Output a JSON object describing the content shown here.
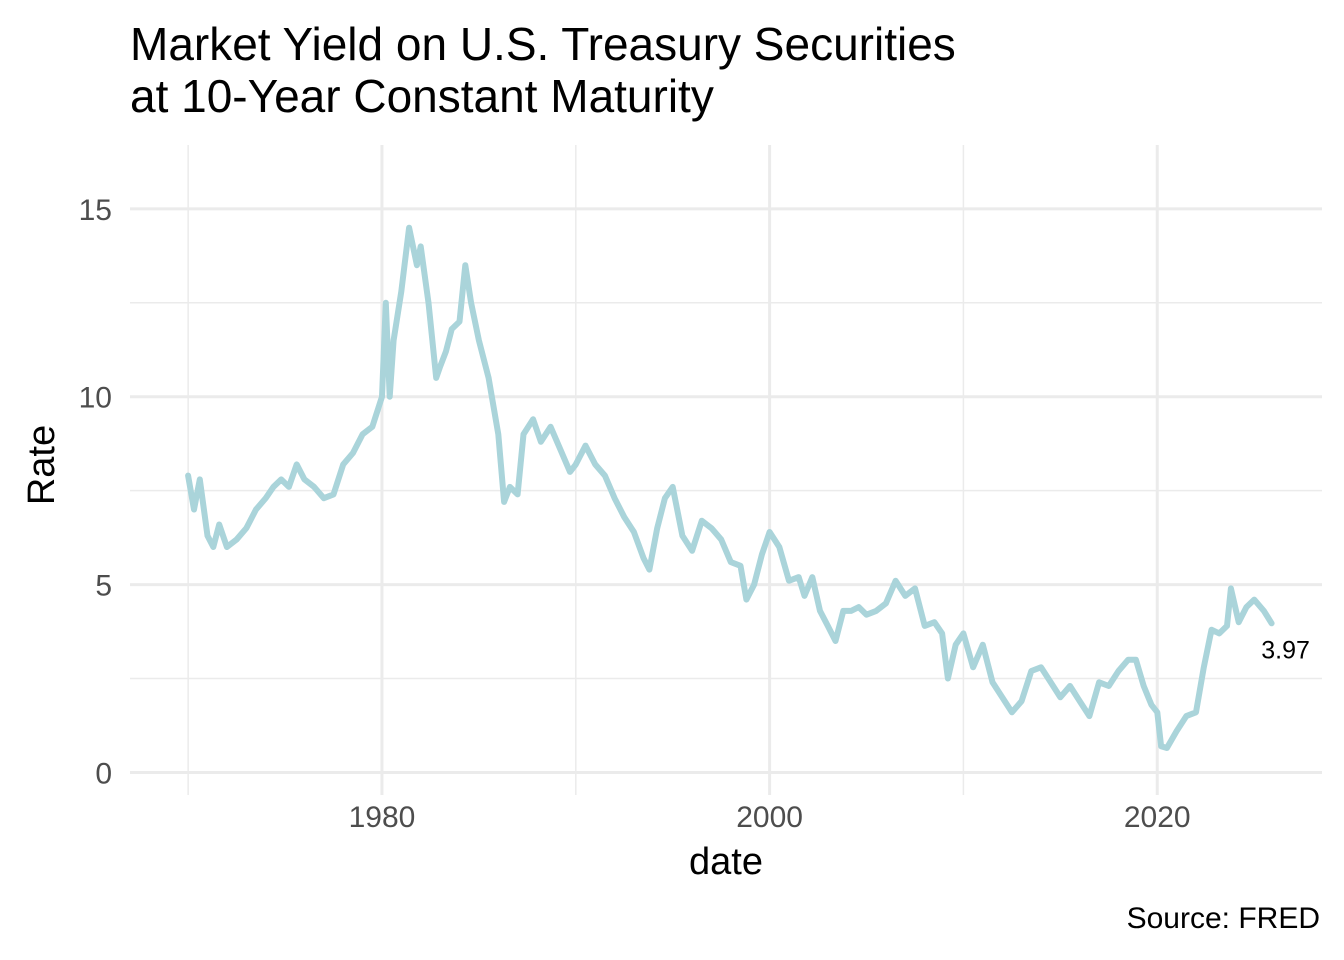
{
  "chart_data": {
    "type": "line",
    "title_lines": [
      "Market Yield on U.S. Treasury Securities",
      "at 10-Year Constant Maturity"
    ],
    "xlabel": "date",
    "ylabel": "Rate",
    "caption": "Source: FRED",
    "end_label": "3.97",
    "xlim": [
      1967.0,
      2028.5
    ],
    "ylim": [
      -0.6,
      16.7
    ],
    "x_major_ticks": [
      1980,
      2000,
      2020
    ],
    "x_minor_ticks": [
      1970,
      1990,
      2010
    ],
    "y_major_ticks": [
      0,
      5,
      10,
      15
    ],
    "y_minor_ticks": [
      2.5,
      7.5,
      12.5
    ],
    "grid": true,
    "line_color": "#aad4da",
    "grid_color": "#ebebeb",
    "series": [
      {
        "x": [
          1970.0,
          1970.3,
          1970.6,
          1971.0,
          1971.3,
          1971.6,
          1972.0,
          1972.5,
          1973.0,
          1973.5,
          1974.0,
          1974.4,
          1974.8,
          1975.2,
          1975.6,
          1976.0,
          1976.5,
          1977.0,
          1977.5,
          1978.0,
          1978.5,
          1979.0,
          1979.5,
          1980.0,
          1980.2,
          1980.4,
          1980.6,
          1981.0,
          1981.4,
          1981.8,
          1982.0,
          1982.4,
          1982.8,
          1983.0,
          1983.3,
          1983.6,
          1984.0,
          1984.3,
          1984.6,
          1985.0,
          1985.5,
          1986.0,
          1986.3,
          1986.6,
          1987.0,
          1987.3,
          1987.8,
          1988.2,
          1988.7,
          1989.2,
          1989.7,
          1990.0,
          1990.5,
          1991.0,
          1991.5,
          1992.0,
          1992.5,
          1993.0,
          1993.5,
          1993.8,
          1994.2,
          1994.6,
          1995.0,
          1995.5,
          1996.0,
          1996.5,
          1997.0,
          1997.5,
          1998.0,
          1998.5,
          1998.8,
          1999.2,
          1999.6,
          2000.0,
          2000.5,
          2001.0,
          2001.5,
          2001.8,
          2002.2,
          2002.6,
          2003.0,
          2003.4,
          2003.8,
          2004.2,
          2004.6,
          2005.0,
          2005.5,
          2006.0,
          2006.5,
          2007.0,
          2007.5,
          2008.0,
          2008.5,
          2008.9,
          2009.2,
          2009.6,
          2010.0,
          2010.5,
          2011.0,
          2011.5,
          2012.0,
          2012.5,
          2013.0,
          2013.5,
          2014.0,
          2014.5,
          2015.0,
          2015.5,
          2016.0,
          2016.5,
          2017.0,
          2017.5,
          2018.0,
          2018.5,
          2018.9,
          2019.3,
          2019.7,
          2020.0,
          2020.2,
          2020.5,
          2021.0,
          2021.5,
          2022.0,
          2022.4,
          2022.8,
          2023.2,
          2023.6,
          2023.8,
          2024.2,
          2024.6,
          2025.0,
          2025.5,
          2025.9
        ],
        "y": [
          7.9,
          7.0,
          7.8,
          6.3,
          6.0,
          6.6,
          6.0,
          6.2,
          6.5,
          7.0,
          7.3,
          7.6,
          7.8,
          7.6,
          8.2,
          7.8,
          7.6,
          7.3,
          7.4,
          8.2,
          8.5,
          9.0,
          9.2,
          10.0,
          12.5,
          10.0,
          11.5,
          12.8,
          14.5,
          13.5,
          14.0,
          12.5,
          10.5,
          10.8,
          11.2,
          11.8,
          12.0,
          13.5,
          12.5,
          11.5,
          10.5,
          9.0,
          7.2,
          7.6,
          7.4,
          9.0,
          9.4,
          8.8,
          9.2,
          8.6,
          8.0,
          8.2,
          8.7,
          8.2,
          7.9,
          7.3,
          6.8,
          6.4,
          5.7,
          5.4,
          6.5,
          7.3,
          7.6,
          6.3,
          5.9,
          6.7,
          6.5,
          6.2,
          5.6,
          5.5,
          4.6,
          5.0,
          5.8,
          6.4,
          6.0,
          5.1,
          5.2,
          4.7,
          5.2,
          4.3,
          3.9,
          3.5,
          4.3,
          4.3,
          4.4,
          4.2,
          4.3,
          4.5,
          5.1,
          4.7,
          4.9,
          3.9,
          4.0,
          3.7,
          2.5,
          3.4,
          3.7,
          2.8,
          3.4,
          2.4,
          2.0,
          1.6,
          1.9,
          2.7,
          2.8,
          2.4,
          2.0,
          2.3,
          1.9,
          1.5,
          2.4,
          2.3,
          2.7,
          3.0,
          3.0,
          2.3,
          1.8,
          1.6,
          0.7,
          0.65,
          1.1,
          1.5,
          1.6,
          2.8,
          3.8,
          3.7,
          3.9,
          4.9,
          4.0,
          4.4,
          4.6,
          4.3,
          3.97
        ]
      }
    ]
  }
}
